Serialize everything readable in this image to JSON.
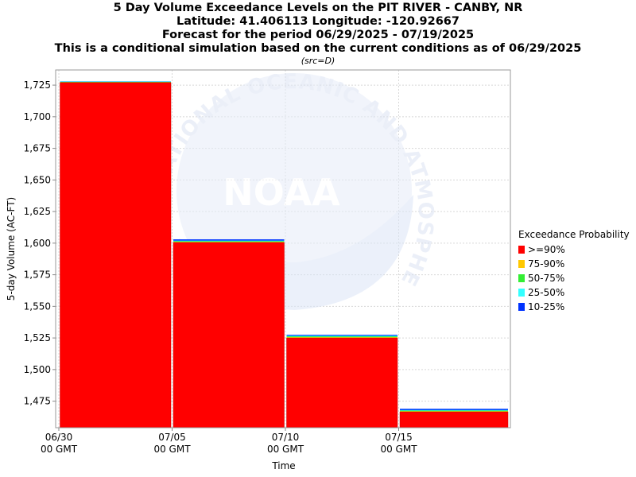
{
  "header": {
    "title_lines": [
      "5 Day Volume Exceedance Levels on the PIT RIVER - CANBY, NR",
      "Latitude: 41.406113 Longitude: -120.92667",
      "Forecast for the period 06/29/2025 - 07/19/2025",
      "This is a conditional simulation based on the current conditions as of 06/29/2025"
    ],
    "subtitle": "(src=D)"
  },
  "watermark": {
    "ring_text": "NATIONAL OCEANIC AND ATMOSPHERIC ADMINISTRATION",
    "center_text": "NOAA"
  },
  "legend": {
    "title": "Exceedance Probability",
    "items": [
      {
        "label": ">=90%",
        "color": "#ff0000"
      },
      {
        "label": "75-90%",
        "color": "#ffc800"
      },
      {
        "label": "50-75%",
        "color": "#33ee33"
      },
      {
        "label": "25-50%",
        "color": "#33ffff"
      },
      {
        "label": "10-25%",
        "color": "#0033ff"
      }
    ]
  },
  "chart_data": {
    "type": "bar",
    "title": "5 Day Volume Exceedance Levels on the PIT RIVER - CANBY, NR",
    "xlabel": "Time",
    "ylabel": "5-day Volume (AC-FT)",
    "ylim": [
      1454,
      1737
    ],
    "yticks": [
      1475,
      1500,
      1525,
      1550,
      1575,
      1600,
      1625,
      1650,
      1675,
      1700,
      1725
    ],
    "ytick_labels": [
      "1,475",
      "1,500",
      "1,525",
      "1,550",
      "1,575",
      "1,600",
      "1,625",
      "1,650",
      "1,675",
      "1,700",
      "1,725"
    ],
    "xlim": [
      "2025-06-30",
      "2025-07-19"
    ],
    "xticks": [
      {
        "date": "2025-06-30",
        "label": "06/30",
        "sublabel": "00 GMT"
      },
      {
        "date": "2025-07-05",
        "label": "07/05",
        "sublabel": "00 GMT"
      },
      {
        "date": "2025-07-10",
        "label": "07/10",
        "sublabel": "00 GMT"
      },
      {
        "date": "2025-07-15",
        "label": "07/15",
        "sublabel": "00 GMT"
      }
    ],
    "grid": true,
    "legend_position": "right",
    "bars": [
      {
        "start": "2025-06-30",
        "end": "2025-07-05",
        "levels": [
          1727,
          1727.3,
          1727.6,
          1727.9,
          1728
        ]
      },
      {
        "start": "2025-07-05",
        "end": "2025-07-10",
        "levels": [
          1600.5,
          1601,
          1601.5,
          1602,
          1603
        ]
      },
      {
        "start": "2025-07-10",
        "end": "2025-07-15",
        "levels": [
          1525,
          1525.6,
          1526.2,
          1526.8,
          1527.5
        ]
      },
      {
        "start": "2025-07-15",
        "end": "2025-07-20",
        "levels": [
          1466.5,
          1467,
          1467.5,
          1468,
          1469
        ]
      }
    ],
    "series_names": [
      ">=90%",
      "75-90%",
      "50-75%",
      "25-50%",
      "10-25%"
    ],
    "series_colors": [
      "#ff0000",
      "#ffc800",
      "#33ee33",
      "#33ffff",
      "#0033ff"
    ]
  }
}
